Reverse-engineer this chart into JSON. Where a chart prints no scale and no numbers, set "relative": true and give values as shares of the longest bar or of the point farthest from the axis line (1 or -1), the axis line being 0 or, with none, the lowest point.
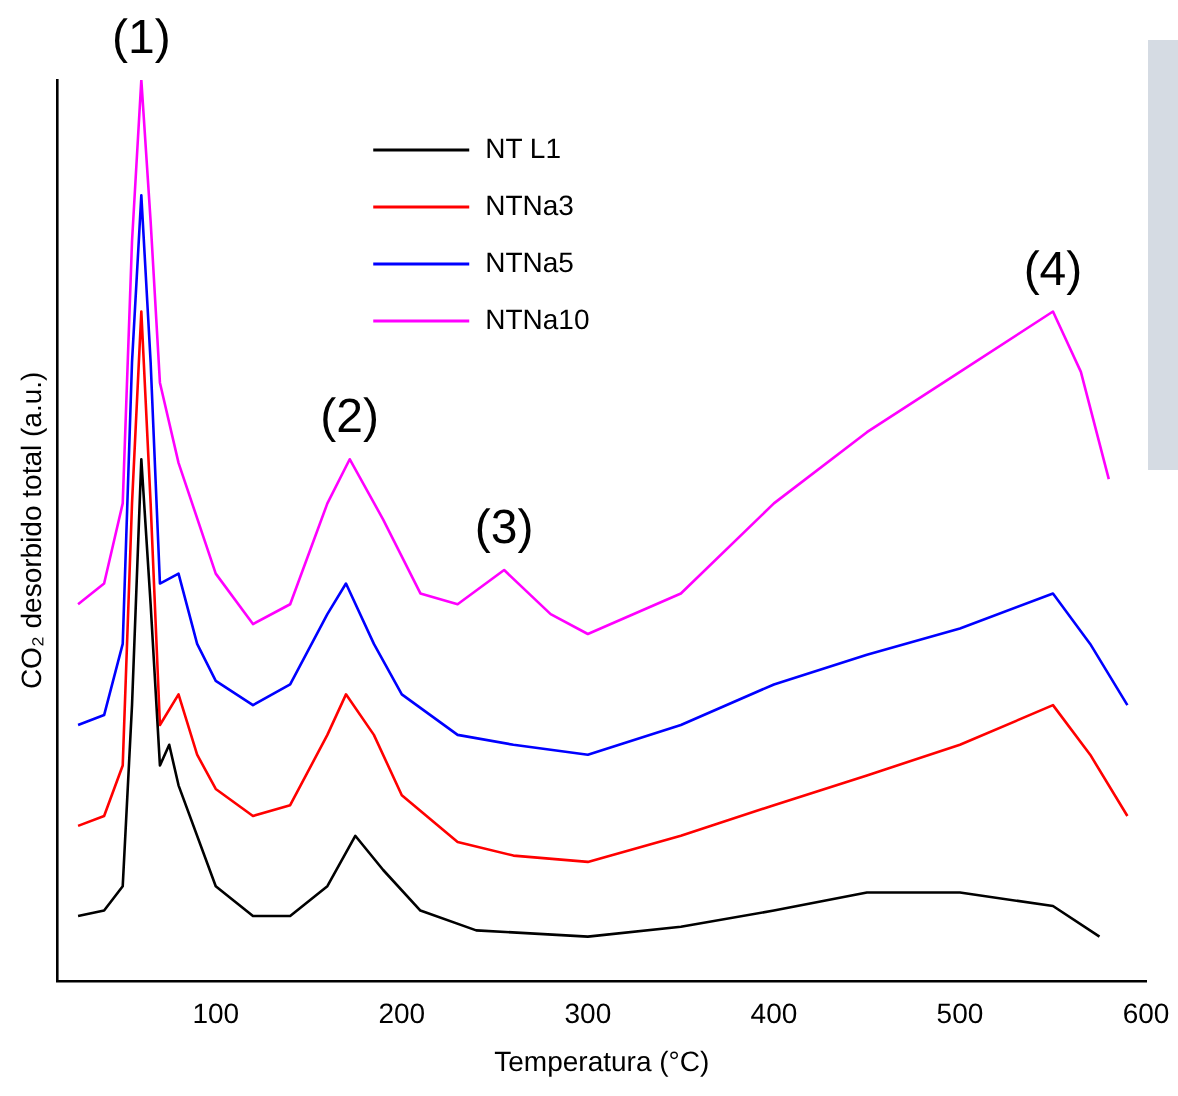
{
  "chart_data": {
    "type": "line",
    "relative": true,
    "xlabel": "Temperatura (°C)",
    "ylabel": "CO₂ desorbido total (a.u.)",
    "xlim": [
      15,
      600
    ],
    "xticks": [
      100,
      200,
      300,
      400,
      500,
      600
    ],
    "grid": false,
    "legend": "top",
    "marker": "none",
    "line_style": "solid",
    "annotations": [
      {
        "text": "(1)",
        "x": 60,
        "y": 1
      },
      {
        "text": "(2)",
        "x": 172,
        "y": 0.579
      },
      {
        "text": "(3)",
        "x": 255,
        "y": 0.456
      },
      {
        "text": "(4)",
        "x": 550,
        "y": 0.743
      }
    ],
    "series": [
      {
        "name": "NT L1",
        "color": "#000000",
        "x": [
          26,
          40,
          50,
          55,
          60,
          65,
          70,
          75,
          80,
          100,
          120,
          140,
          160,
          175,
          190,
          210,
          240,
          300,
          350,
          400,
          450,
          500,
          550,
          575
        ],
        "values": [
          0.072,
          0.078,
          0.105,
          0.306,
          0.579,
          0.418,
          0.239,
          0.262,
          0.217,
          0.105,
          0.072,
          0.072,
          0.105,
          0.161,
          0.123,
          0.078,
          0.056,
          0.049,
          0.06,
          0.078,
          0.098,
          0.098,
          0.083,
          0.049
        ]
      },
      {
        "name": "NTNa3",
        "color": "#ff0000",
        "x": [
          26,
          40,
          50,
          55,
          60,
          65,
          70,
          80,
          90,
          100,
          120,
          140,
          160,
          170,
          185,
          200,
          230,
          260,
          300,
          350,
          400,
          450,
          500,
          550,
          570,
          590
        ],
        "values": [
          0.172,
          0.183,
          0.239,
          0.53,
          0.743,
          0.53,
          0.284,
          0.318,
          0.251,
          0.213,
          0.183,
          0.195,
          0.273,
          0.318,
          0.273,
          0.206,
          0.154,
          0.139,
          0.132,
          0.161,
          0.195,
          0.228,
          0.262,
          0.306,
          0.251,
          0.183
        ]
      },
      {
        "name": "NTNa5",
        "color": "#0000ff",
        "x": [
          26,
          40,
          50,
          55,
          60,
          65,
          70,
          80,
          90,
          100,
          120,
          140,
          160,
          170,
          185,
          200,
          230,
          260,
          300,
          350,
          400,
          450,
          500,
          550,
          570,
          590
        ],
        "values": [
          0.284,
          0.295,
          0.374,
          0.687,
          0.872,
          0.687,
          0.441,
          0.452,
          0.374,
          0.333,
          0.306,
          0.329,
          0.407,
          0.441,
          0.374,
          0.318,
          0.273,
          0.262,
          0.251,
          0.284,
          0.329,
          0.362,
          0.391,
          0.43,
          0.374,
          0.306
        ]
      },
      {
        "name": "NTNa10",
        "color": "#ff00ff",
        "x": [
          26,
          40,
          50,
          55,
          60,
          65,
          70,
          80,
          100,
          120,
          140,
          160,
          172,
          190,
          210,
          230,
          255,
          280,
          300,
          350,
          400,
          450,
          500,
          550,
          565,
          580
        ],
        "values": [
          0.418,
          0.441,
          0.53,
          0.821,
          1,
          0.843,
          0.664,
          0.575,
          0.452,
          0.396,
          0.418,
          0.53,
          0.579,
          0.512,
          0.43,
          0.418,
          0.456,
          0.407,
          0.385,
          0.43,
          0.53,
          0.609,
          0.676,
          0.743,
          0.676,
          0.557
        ]
      }
    ]
  }
}
